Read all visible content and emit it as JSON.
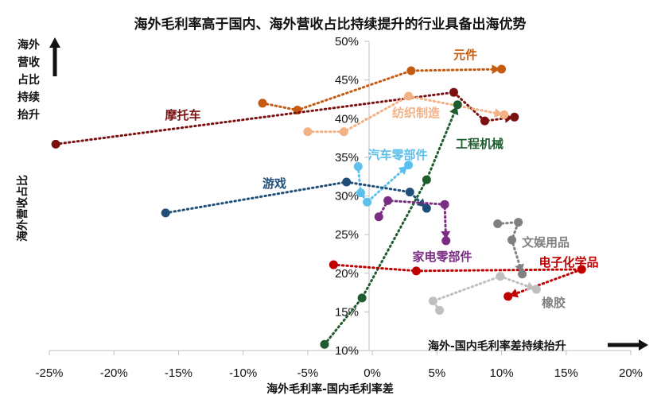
{
  "chart_data": {
    "type": "scatter",
    "title": "海外毛利率高于国内、海外营收占比持续提升的行业具备出海优势",
    "xlabel": "海外毛利率-国内毛利率差",
    "ylabel": "海外营收占比",
    "xlim": [
      -0.25,
      0.2
    ],
    "ylim": [
      0.1,
      0.5
    ],
    "x_ticks": [
      "-25%",
      "-20%",
      "-15%",
      "-10%",
      "-5%",
      "0%",
      "5%",
      "10%",
      "15%",
      "20%"
    ],
    "y_ticks": [
      "10%",
      "15%",
      "20%",
      "25%",
      "30%",
      "35%",
      "40%",
      "45%",
      "50%"
    ],
    "grid": false,
    "annotations": {
      "y_arrow_text": [
        "海外",
        "营收",
        "占比",
        "持续",
        "抬升"
      ],
      "x_arrow_text": "海外-国内毛利率差持续抬升"
    },
    "series": [
      {
        "name": "元件",
        "color": "#C55A11",
        "points": [
          [
            -0.085,
            0.42
          ],
          [
            -0.058,
            0.411
          ],
          [
            0.03,
            0.462
          ],
          [
            0.1,
            0.464
          ]
        ]
      },
      {
        "name": "摩托车",
        "color": "#7B1010",
        "points": [
          [
            -0.245,
            0.367
          ],
          [
            0.063,
            0.434
          ],
          [
            0.087,
            0.397
          ],
          [
            0.11,
            0.402
          ]
        ]
      },
      {
        "name": "纺织制造",
        "color": "#F4B183",
        "points": [
          [
            -0.05,
            0.383
          ],
          [
            -0.022,
            0.383
          ],
          [
            0.028,
            0.429
          ],
          [
            0.102,
            0.405
          ]
        ]
      },
      {
        "name": "工程机械",
        "color": "#1E5C2E",
        "points": [
          [
            -0.037,
            0.108
          ],
          [
            -0.008,
            0.168
          ],
          [
            0.042,
            0.321
          ],
          [
            0.066,
            0.418
          ]
        ]
      },
      {
        "name": "汽车零部件",
        "color": "#5BC0EB",
        "points": [
          [
            -0.011,
            0.338
          ],
          [
            -0.009,
            0.304
          ],
          [
            -0.004,
            0.292
          ],
          [
            0.028,
            0.34
          ]
        ]
      },
      {
        "name": "游戏",
        "color": "#1F4E79",
        "points": [
          [
            -0.16,
            0.278
          ],
          [
            -0.02,
            0.318
          ],
          [
            0.029,
            0.305
          ],
          [
            0.042,
            0.284
          ]
        ]
      },
      {
        "name": "家电零部件",
        "color": "#7B2C83",
        "points": [
          [
            0.005,
            0.273
          ],
          [
            0.012,
            0.294
          ],
          [
            0.056,
            0.289
          ],
          [
            0.057,
            0.242
          ]
        ]
      },
      {
        "name": "电子化学品",
        "color": "#C00000",
        "points": [
          [
            -0.03,
            0.211
          ],
          [
            0.034,
            0.203
          ],
          [
            0.162,
            0.205
          ],
          [
            0.105,
            0.17
          ]
        ]
      },
      {
        "name": "文娱用品",
        "color": "#808080",
        "points": [
          [
            0.097,
            0.264
          ],
          [
            0.113,
            0.266
          ],
          [
            0.108,
            0.243
          ],
          [
            0.116,
            0.199
          ]
        ]
      },
      {
        "name": "橡胶",
        "color": "#BFBFBF",
        "points": [
          [
            0.052,
            0.152
          ],
          [
            0.047,
            0.164
          ],
          [
            0.099,
            0.196
          ],
          [
            0.127,
            0.179
          ]
        ]
      }
    ]
  }
}
